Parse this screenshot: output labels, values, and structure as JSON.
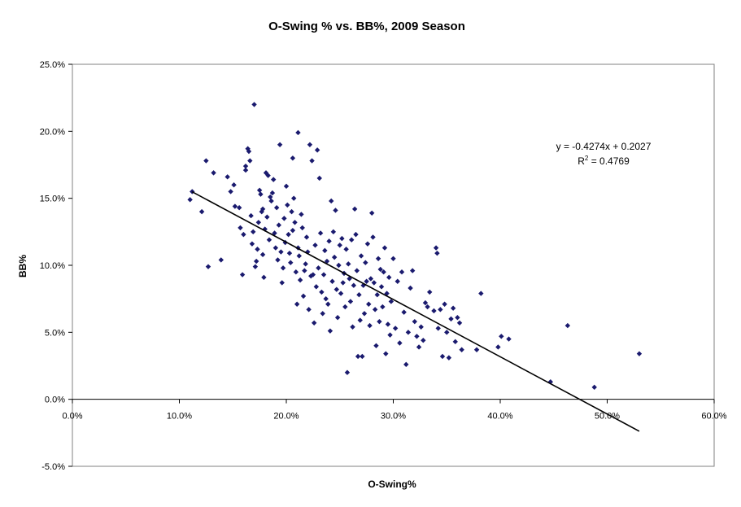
{
  "chart_data": {
    "type": "scatter",
    "title": "O-Swing % vs. BB%, 2009 Season",
    "xlabel": "O-Swing%",
    "ylabel": "BB%",
    "xlim": [
      0,
      0.6
    ],
    "ylim": [
      -0.05,
      0.25
    ],
    "x_ticks": [
      0,
      0.1,
      0.2,
      0.3,
      0.4,
      0.5,
      0.6
    ],
    "x_tick_labels": [
      "0.0%",
      "10.0%",
      "20.0%",
      "30.0%",
      "40.0%",
      "50.0%",
      "60.0%"
    ],
    "y_ticks": [
      -0.05,
      0,
      0.05,
      0.1,
      0.15,
      0.2,
      0.25
    ],
    "y_tick_labels": [
      "-5.0%",
      "0.0%",
      "5.0%",
      "10.0%",
      "15.0%",
      "20.0%",
      "25.0%"
    ],
    "grid": false,
    "legend": "none",
    "marker_color": "#1a1a6e",
    "trendline": {
      "type": "linear",
      "slope": -0.4274,
      "intercept": 0.2027,
      "x_range": [
        0.112,
        0.53
      ],
      "color": "#000000"
    },
    "annotation": {
      "equation": "y = -0.4274x + 0.2027",
      "r2_prefix": "R",
      "r2_superscript": "2",
      "r2_value": " = 0.4769"
    },
    "points": [
      [
        0.11,
        0.149
      ],
      [
        0.112,
        0.155
      ],
      [
        0.121,
        0.14
      ],
      [
        0.125,
        0.178
      ],
      [
        0.127,
        0.099
      ],
      [
        0.132,
        0.169
      ],
      [
        0.139,
        0.104
      ],
      [
        0.145,
        0.166
      ],
      [
        0.148,
        0.155
      ],
      [
        0.151,
        0.16
      ],
      [
        0.152,
        0.144
      ],
      [
        0.156,
        0.143
      ],
      [
        0.157,
        0.128
      ],
      [
        0.159,
        0.093
      ],
      [
        0.16,
        0.123
      ],
      [
        0.162,
        0.174
      ],
      [
        0.162,
        0.171
      ],
      [
        0.164,
        0.187
      ],
      [
        0.165,
        0.185
      ],
      [
        0.166,
        0.178
      ],
      [
        0.167,
        0.137
      ],
      [
        0.168,
        0.116
      ],
      [
        0.169,
        0.125
      ],
      [
        0.17,
        0.22
      ],
      [
        0.171,
        0.099
      ],
      [
        0.172,
        0.103
      ],
      [
        0.173,
        0.112
      ],
      [
        0.174,
        0.132
      ],
      [
        0.175,
        0.156
      ],
      [
        0.176,
        0.153
      ],
      [
        0.177,
        0.14
      ],
      [
        0.178,
        0.142
      ],
      [
        0.178,
        0.108
      ],
      [
        0.179,
        0.091
      ],
      [
        0.18,
        0.127
      ],
      [
        0.181,
        0.169
      ],
      [
        0.182,
        0.136
      ],
      [
        0.183,
        0.167
      ],
      [
        0.184,
        0.119
      ],
      [
        0.185,
        0.151
      ],
      [
        0.186,
        0.148
      ],
      [
        0.187,
        0.154
      ],
      [
        0.188,
        0.164
      ],
      [
        0.189,
        0.124
      ],
      [
        0.19,
        0.113
      ],
      [
        0.191,
        0.143
      ],
      [
        0.192,
        0.104
      ],
      [
        0.193,
        0.13
      ],
      [
        0.194,
        0.19
      ],
      [
        0.195,
        0.11
      ],
      [
        0.196,
        0.087
      ],
      [
        0.197,
        0.098
      ],
      [
        0.198,
        0.135
      ],
      [
        0.199,
        0.117
      ],
      [
        0.2,
        0.159
      ],
      [
        0.201,
        0.145
      ],
      [
        0.202,
        0.123
      ],
      [
        0.203,
        0.109
      ],
      [
        0.204,
        0.102
      ],
      [
        0.205,
        0.14
      ],
      [
        0.206,
        0.18
      ],
      [
        0.206,
        0.126
      ],
      [
        0.207,
        0.15
      ],
      [
        0.208,
        0.132
      ],
      [
        0.209,
        0.095
      ],
      [
        0.21,
        0.071
      ],
      [
        0.211,
        0.113
      ],
      [
        0.211,
        0.199
      ],
      [
        0.212,
        0.107
      ],
      [
        0.213,
        0.089
      ],
      [
        0.214,
        0.138
      ],
      [
        0.215,
        0.128
      ],
      [
        0.216,
        0.077
      ],
      [
        0.217,
        0.096
      ],
      [
        0.218,
        0.101
      ],
      [
        0.219,
        0.121
      ],
      [
        0.22,
        0.11
      ],
      [
        0.221,
        0.067
      ],
      [
        0.222,
        0.19
      ],
      [
        0.223,
        0.092
      ],
      [
        0.224,
        0.178
      ],
      [
        0.225,
        0.093
      ],
      [
        0.226,
        0.057
      ],
      [
        0.227,
        0.115
      ],
      [
        0.228,
        0.084
      ],
      [
        0.229,
        0.186
      ],
      [
        0.23,
        0.098
      ],
      [
        0.231,
        0.165
      ],
      [
        0.232,
        0.124
      ],
      [
        0.233,
        0.08
      ],
      [
        0.234,
        0.064
      ],
      [
        0.235,
        0.093
      ],
      [
        0.236,
        0.111
      ],
      [
        0.237,
        0.075
      ],
      [
        0.238,
        0.103
      ],
      [
        0.239,
        0.071
      ],
      [
        0.24,
        0.118
      ],
      [
        0.241,
        0.051
      ],
      [
        0.242,
        0.148
      ],
      [
        0.243,
        0.088
      ],
      [
        0.244,
        0.125
      ],
      [
        0.245,
        0.106
      ],
      [
        0.246,
        0.141
      ],
      [
        0.247,
        0.082
      ],
      [
        0.248,
        0.061
      ],
      [
        0.249,
        0.1
      ],
      [
        0.25,
        0.115
      ],
      [
        0.251,
        0.079
      ],
      [
        0.252,
        0.12
      ],
      [
        0.253,
        0.087
      ],
      [
        0.254,
        0.094
      ],
      [
        0.255,
        0.069
      ],
      [
        0.256,
        0.112
      ],
      [
        0.257,
        0.02
      ],
      [
        0.258,
        0.101
      ],
      [
        0.259,
        0.09
      ],
      [
        0.26,
        0.073
      ],
      [
        0.261,
        0.119
      ],
      [
        0.262,
        0.054
      ],
      [
        0.263,
        0.085
      ],
      [
        0.264,
        0.142
      ],
      [
        0.265,
        0.123
      ],
      [
        0.266,
        0.096
      ],
      [
        0.267,
        0.032
      ],
      [
        0.268,
        0.078
      ],
      [
        0.269,
        0.059
      ],
      [
        0.27,
        0.107
      ],
      [
        0.271,
        0.032
      ],
      [
        0.272,
        0.085
      ],
      [
        0.273,
        0.064
      ],
      [
        0.274,
        0.102
      ],
      [
        0.275,
        0.088
      ],
      [
        0.276,
        0.116
      ],
      [
        0.277,
        0.071
      ],
      [
        0.278,
        0.055
      ],
      [
        0.279,
        0.09
      ],
      [
        0.28,
        0.139
      ],
      [
        0.281,
        0.121
      ],
      [
        0.282,
        0.087
      ],
      [
        0.283,
        0.067
      ],
      [
        0.284,
        0.04
      ],
      [
        0.285,
        0.078
      ],
      [
        0.286,
        0.105
      ],
      [
        0.287,
        0.058
      ],
      [
        0.288,
        0.097
      ],
      [
        0.289,
        0.084
      ],
      [
        0.29,
        0.069
      ],
      [
        0.291,
        0.095
      ],
      [
        0.292,
        0.113
      ],
      [
        0.293,
        0.034
      ],
      [
        0.294,
        0.079
      ],
      [
        0.295,
        0.056
      ],
      [
        0.296,
        0.091
      ],
      [
        0.297,
        0.048
      ],
      [
        0.298,
        0.073
      ],
      [
        0.3,
        0.105
      ],
      [
        0.302,
        0.053
      ],
      [
        0.304,
        0.088
      ],
      [
        0.306,
        0.042
      ],
      [
        0.308,
        0.095
      ],
      [
        0.31,
        0.065
      ],
      [
        0.312,
        0.026
      ],
      [
        0.314,
        0.05
      ],
      [
        0.316,
        0.083
      ],
      [
        0.318,
        0.096
      ],
      [
        0.32,
        0.058
      ],
      [
        0.322,
        0.047
      ],
      [
        0.324,
        0.039
      ],
      [
        0.326,
        0.054
      ],
      [
        0.328,
        0.044
      ],
      [
        0.33,
        0.072
      ],
      [
        0.332,
        0.069
      ],
      [
        0.334,
        0.08
      ],
      [
        0.338,
        0.066
      ],
      [
        0.34,
        0.113
      ],
      [
        0.341,
        0.109
      ],
      [
        0.342,
        0.053
      ],
      [
        0.344,
        0.067
      ],
      [
        0.346,
        0.032
      ],
      [
        0.348,
        0.071
      ],
      [
        0.35,
        0.05
      ],
      [
        0.352,
        0.031
      ],
      [
        0.354,
        0.06
      ],
      [
        0.356,
        0.068
      ],
      [
        0.358,
        0.043
      ],
      [
        0.36,
        0.061
      ],
      [
        0.362,
        0.057
      ],
      [
        0.364,
        0.037
      ],
      [
        0.378,
        0.037
      ],
      [
        0.382,
        0.079
      ],
      [
        0.398,
        0.039
      ],
      [
        0.401,
        0.047
      ],
      [
        0.408,
        0.045
      ],
      [
        0.447,
        0.013
      ],
      [
        0.463,
        0.055
      ],
      [
        0.488,
        0.009
      ],
      [
        0.53,
        0.034
      ]
    ]
  }
}
